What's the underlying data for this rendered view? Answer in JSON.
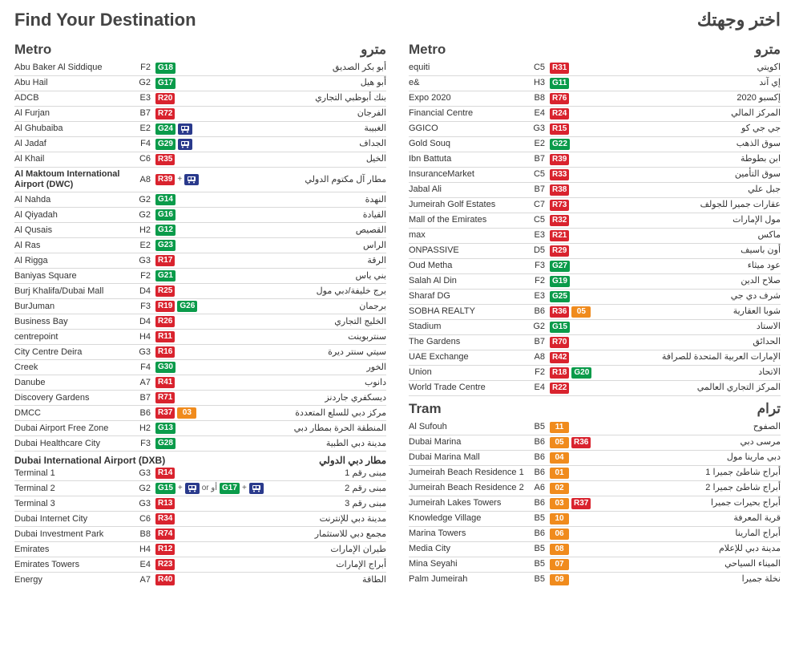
{
  "colors": {
    "red": "#d9232e",
    "green": "#0a9b4a",
    "orange": "#f08b1d",
    "iconbg": "#2a3a8c"
  },
  "header": {
    "en": "Find Your Destination",
    "ar": "اختر وجهتك"
  },
  "leftSections": [
    {
      "en": "Metro",
      "ar": "مترو",
      "rows": [
        {
          "en": "Abu Baker Al Siddique",
          "grid": "F2",
          "badges": [
            {
              "t": "G18",
              "c": "green"
            }
          ],
          "ar": "أبو بكر الصديق"
        },
        {
          "en": "Abu Hail",
          "grid": "G2",
          "badges": [
            {
              "t": "G17",
              "c": "green"
            }
          ],
          "ar": "أبو هيل"
        },
        {
          "en": "ADCB",
          "grid": "E3",
          "badges": [
            {
              "t": "R20",
              "c": "red"
            }
          ],
          "ar": "بنك أبوظبي التجاري"
        },
        {
          "en": "Al Furjan",
          "grid": "B7",
          "badges": [
            {
              "t": "R72",
              "c": "red"
            }
          ],
          "ar": "الفرجان"
        },
        {
          "en": "Al Ghubaiba",
          "grid": "E2",
          "badges": [
            {
              "t": "G24",
              "c": "green"
            }
          ],
          "icons": [
            "bus"
          ],
          "ar": "الغبيبة"
        },
        {
          "en": "Al Jadaf",
          "grid": "F4",
          "badges": [
            {
              "t": "G29",
              "c": "green"
            }
          ],
          "icons": [
            "bus"
          ],
          "ar": "الجداف"
        },
        {
          "en": "Al Khail",
          "grid": "C6",
          "badges": [
            {
              "t": "R35",
              "c": "red"
            }
          ],
          "ar": "الخيل"
        },
        {
          "en": "Al Maktoum International Airport (DWC)",
          "bold": true,
          "grid": "A8",
          "badges": [
            {
              "t": "R39",
              "c": "red"
            }
          ],
          "sep": "+",
          "icons": [
            "bus"
          ],
          "ar": "مطار آل مكتوم الدولي"
        },
        {
          "en": "Al Nahda",
          "grid": "G2",
          "badges": [
            {
              "t": "G14",
              "c": "green"
            }
          ],
          "ar": "النهدة"
        },
        {
          "en": "Al Qiyadah",
          "grid": "G2",
          "badges": [
            {
              "t": "G16",
              "c": "green"
            }
          ],
          "ar": "القيادة"
        },
        {
          "en": "Al Qusais",
          "grid": "H2",
          "badges": [
            {
              "t": "G12",
              "c": "green"
            }
          ],
          "ar": "القصيص"
        },
        {
          "en": "Al Ras",
          "grid": "E2",
          "badges": [
            {
              "t": "G23",
              "c": "green"
            }
          ],
          "ar": "الراس"
        },
        {
          "en": "Al Rigga",
          "grid": "G3",
          "badges": [
            {
              "t": "R17",
              "c": "red"
            }
          ],
          "ar": "الرقة"
        },
        {
          "en": "Baniyas Square",
          "grid": "F2",
          "badges": [
            {
              "t": "G21",
              "c": "green"
            }
          ],
          "ar": "بني ياس"
        },
        {
          "en": "Burj Khalifa/Dubai Mall",
          "grid": "D4",
          "badges": [
            {
              "t": "R25",
              "c": "red"
            }
          ],
          "ar": "برج خليفة/دبي مول"
        },
        {
          "en": "BurJuman",
          "grid": "F3",
          "badges": [
            {
              "t": "R19",
              "c": "red"
            },
            {
              "t": "G26",
              "c": "green"
            }
          ],
          "ar": "برجمان"
        },
        {
          "en": "Business Bay",
          "grid": "D4",
          "badges": [
            {
              "t": "R26",
              "c": "red"
            }
          ],
          "ar": "الخليج التجاري"
        },
        {
          "en": "centrepoint",
          "grid": "H4",
          "badges": [
            {
              "t": "R11",
              "c": "red"
            }
          ],
          "ar": "سنتربوينت"
        },
        {
          "en": "City Centre Deira",
          "grid": "G3",
          "badges": [
            {
              "t": "R16",
              "c": "red"
            }
          ],
          "ar": "سيتي سنتر ديرة"
        },
        {
          "en": "Creek",
          "grid": "F4",
          "badges": [
            {
              "t": "G30",
              "c": "green"
            }
          ],
          "ar": "الخور"
        },
        {
          "en": "Danube",
          "grid": "A7",
          "badges": [
            {
              "t": "R41",
              "c": "red"
            }
          ],
          "ar": "دانوب"
        },
        {
          "en": "Discovery Gardens",
          "grid": "B7",
          "badges": [
            {
              "t": "R71",
              "c": "red"
            }
          ],
          "ar": "ديسكفري جاردنز"
        },
        {
          "en": "DMCC",
          "grid": "B6",
          "badges": [
            {
              "t": "R37",
              "c": "red"
            },
            {
              "t": "03",
              "c": "orange"
            }
          ],
          "ar": "مركز دبي للسلع المتعددة"
        },
        {
          "en": "Dubai Airport Free Zone",
          "grid": "H2",
          "badges": [
            {
              "t": "G13",
              "c": "green"
            }
          ],
          "ar": "المنطقة الحرة بمطار دبي"
        },
        {
          "en": "Dubai Healthcare City",
          "grid": "F3",
          "badges": [
            {
              "t": "G28",
              "c": "green"
            }
          ],
          "ar": "مدينة دبي الطبية"
        }
      ],
      "subsections": [
        {
          "en": "Dubai International Airport (DXB)",
          "ar": "مطار دبي الدولي",
          "rows": [
            {
              "en": "Terminal 1",
              "grid": "G3",
              "badges": [
                {
                  "t": "R14",
                  "c": "red"
                }
              ],
              "ar": "مبنى رقم 1"
            },
            {
              "en": "Terminal 2",
              "grid": "G2",
              "badges": [
                {
                  "t": "G15",
                  "c": "green"
                }
              ],
              "sep": "+",
              "icons": [
                "bus"
              ],
              "extra": " or أو ",
              "badges2": [
                {
                  "t": "G17",
                  "c": "green"
                }
              ],
              "sep2": "+",
              "icons2": [
                "bus"
              ],
              "ar": "مبنى رقم 2"
            },
            {
              "en": "Terminal 3",
              "grid": "G3",
              "badges": [
                {
                  "t": "R13",
                  "c": "red"
                }
              ],
              "ar": "مبنى رقم 3"
            }
          ]
        }
      ],
      "rowsAfter": [
        {
          "en": "Dubai Internet City",
          "grid": "C6",
          "badges": [
            {
              "t": "R34",
              "c": "red"
            }
          ],
          "ar": "مدينة دبي للإنترنت"
        },
        {
          "en": "Dubai Investment Park",
          "grid": "B8",
          "badges": [
            {
              "t": "R74",
              "c": "red"
            }
          ],
          "ar": "مجمع دبي للاستثمار"
        },
        {
          "en": "Emirates",
          "grid": "H4",
          "badges": [
            {
              "t": "R12",
              "c": "red"
            }
          ],
          "ar": "طيران الإمارات"
        },
        {
          "en": "Emirates Towers",
          "grid": "E4",
          "badges": [
            {
              "t": "R23",
              "c": "red"
            }
          ],
          "ar": "أبراج الإمارات"
        },
        {
          "en": "Energy",
          "grid": "A7",
          "badges": [
            {
              "t": "R40",
              "c": "red"
            }
          ],
          "ar": "الطاقة"
        }
      ]
    }
  ],
  "rightSections": [
    {
      "en": "Metro",
      "ar": "مترو",
      "rows": [
        {
          "en": "equiti",
          "grid": "C5",
          "badges": [
            {
              "t": "R31",
              "c": "red"
            }
          ],
          "ar": "اكويتي"
        },
        {
          "en": "e&",
          "grid": "H3",
          "badges": [
            {
              "t": "G11",
              "c": "green"
            }
          ],
          "ar": "إي آند"
        },
        {
          "en": "Expo 2020",
          "grid": "B8",
          "badges": [
            {
              "t": "R76",
              "c": "red"
            }
          ],
          "ar": "إكسبو 2020"
        },
        {
          "en": "Financial Centre",
          "grid": "E4",
          "badges": [
            {
              "t": "R24",
              "c": "red"
            }
          ],
          "ar": "المركز المالي"
        },
        {
          "en": "GGICO",
          "grid": "G3",
          "badges": [
            {
              "t": "R15",
              "c": "red"
            }
          ],
          "ar": "جي جي كو"
        },
        {
          "en": "Gold Souq",
          "grid": "E2",
          "badges": [
            {
              "t": "G22",
              "c": "green"
            }
          ],
          "ar": "سوق الذهب"
        },
        {
          "en": "Ibn Battuta",
          "grid": "B7",
          "badges": [
            {
              "t": "R39",
              "c": "red"
            }
          ],
          "ar": "ابن بطوطة"
        },
        {
          "en": "InsuranceMarket",
          "grid": "C5",
          "badges": [
            {
              "t": "R33",
              "c": "red"
            }
          ],
          "ar": "سوق التأمين"
        },
        {
          "en": "Jabal Ali",
          "grid": "B7",
          "badges": [
            {
              "t": "R38",
              "c": "red"
            }
          ],
          "ar": "جبل علي"
        },
        {
          "en": "Jumeirah Golf Estates",
          "grid": "C7",
          "badges": [
            {
              "t": "R73",
              "c": "red"
            }
          ],
          "ar": "عقارات جميرا للجولف"
        },
        {
          "en": "Mall of the Emirates",
          "grid": "C5",
          "badges": [
            {
              "t": "R32",
              "c": "red"
            }
          ],
          "ar": "مول الإمارات"
        },
        {
          "en": "max",
          "grid": "E3",
          "badges": [
            {
              "t": "R21",
              "c": "red"
            }
          ],
          "ar": "ماكس"
        },
        {
          "en": "ONPASSIVE",
          "grid": "D5",
          "badges": [
            {
              "t": "R29",
              "c": "red"
            }
          ],
          "ar": "أون باسيف"
        },
        {
          "en": "Oud Metha",
          "grid": "F3",
          "badges": [
            {
              "t": "G27",
              "c": "green"
            }
          ],
          "ar": "عود ميثاء"
        },
        {
          "en": "Salah Al Din",
          "grid": "F2",
          "badges": [
            {
              "t": "G19",
              "c": "green"
            }
          ],
          "ar": "صلاح الدين"
        },
        {
          "en": "Sharaf DG",
          "grid": "E3",
          "badges": [
            {
              "t": "G25",
              "c": "green"
            }
          ],
          "ar": "شرف دي جي"
        },
        {
          "en": "SOBHA REALTY",
          "grid": "B6",
          "badges": [
            {
              "t": "R36",
              "c": "red"
            },
            {
              "t": "05",
              "c": "orange"
            }
          ],
          "ar": "شوبا العقارية"
        },
        {
          "en": "Stadium",
          "grid": "G2",
          "badges": [
            {
              "t": "G15",
              "c": "green"
            }
          ],
          "ar": "الاستاد"
        },
        {
          "en": "The Gardens",
          "grid": "B7",
          "badges": [
            {
              "t": "R70",
              "c": "red"
            }
          ],
          "ar": "الحدائق"
        },
        {
          "en": "UAE Exchange",
          "grid": "A8",
          "badges": [
            {
              "t": "R42",
              "c": "red"
            }
          ],
          "ar": "الإمارات العربية المتحدة للصرافة"
        },
        {
          "en": "Union",
          "grid": "F2",
          "badges": [
            {
              "t": "R18",
              "c": "red"
            },
            {
              "t": "G20",
              "c": "green"
            }
          ],
          "ar": "الاتحاد"
        },
        {
          "en": "World Trade Centre",
          "grid": "E4",
          "badges": [
            {
              "t": "R22",
              "c": "red"
            }
          ],
          "ar": "المركز التجاري العالمي"
        }
      ]
    },
    {
      "en": "Tram",
      "ar": "ترام",
      "rows": [
        {
          "en": "Al Sufouh",
          "grid": "B5",
          "badges": [
            {
              "t": "11",
              "c": "orange"
            }
          ],
          "ar": "الصفوح"
        },
        {
          "en": "Dubai Marina",
          "grid": "B6",
          "badges": [
            {
              "t": "05",
              "c": "orange"
            },
            {
              "t": "R36",
              "c": "red"
            }
          ],
          "ar": "مرسى دبي"
        },
        {
          "en": "Dubai Marina Mall",
          "grid": "B6",
          "badges": [
            {
              "t": "04",
              "c": "orange"
            }
          ],
          "ar": "دبي مارينا مول"
        },
        {
          "en": "Jumeirah Beach Residence 1",
          "grid": "B6",
          "badges": [
            {
              "t": "01",
              "c": "orange"
            }
          ],
          "ar": "أبراج شاطئ جميرا 1"
        },
        {
          "en": "Jumeirah Beach Residence 2",
          "grid": "A6",
          "badges": [
            {
              "t": "02",
              "c": "orange"
            }
          ],
          "ar": "أبراج شاطئ جميرا 2"
        },
        {
          "en": "Jumeirah Lakes Towers",
          "grid": "B6",
          "badges": [
            {
              "t": "03",
              "c": "orange"
            },
            {
              "t": "R37",
              "c": "red"
            }
          ],
          "ar": "أبراج بحيرات جميرا"
        },
        {
          "en": "Knowledge Village",
          "grid": "B5",
          "badges": [
            {
              "t": "10",
              "c": "orange"
            }
          ],
          "ar": "قرية المعرفة"
        },
        {
          "en": "Marina Towers",
          "grid": "B6",
          "badges": [
            {
              "t": "06",
              "c": "orange"
            }
          ],
          "ar": "أبراج المارينا"
        },
        {
          "en": "Media City",
          "grid": "B5",
          "badges": [
            {
              "t": "08",
              "c": "orange"
            }
          ],
          "ar": "مدينة دبي للإعلام"
        },
        {
          "en": "Mina Seyahi",
          "grid": "B5",
          "badges": [
            {
              "t": "07",
              "c": "orange"
            }
          ],
          "ar": "الميناء السياحي"
        },
        {
          "en": "Palm Jumeirah",
          "grid": "B5",
          "badges": [
            {
              "t": "09",
              "c": "orange"
            }
          ],
          "ar": "نخلة جميرا"
        }
      ]
    }
  ]
}
